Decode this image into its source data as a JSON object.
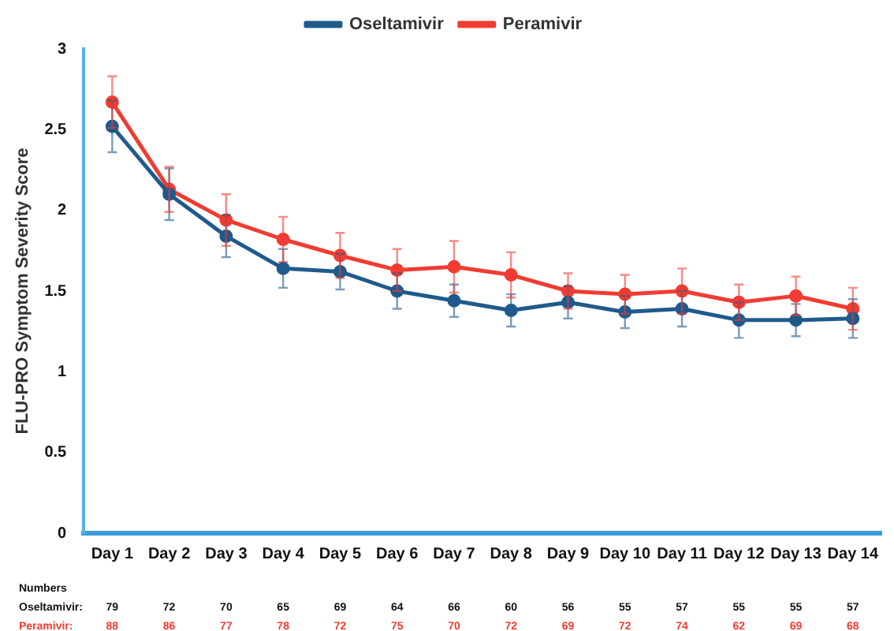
{
  "chart_data": {
    "type": "line",
    "ylabel": "FLU-PRO Symptom Severity Score",
    "categories": [
      "Day 1",
      "Day 2",
      "Day 3",
      "Day 4",
      "Day 5",
      "Day 6",
      "Day 7",
      "Day 8",
      "Day 9",
      "Day 10",
      "Day 11",
      "Day 12",
      "Day 13",
      "Day 14"
    ],
    "series": [
      {
        "name": "Oseltamivir",
        "color": "#1f5a8c",
        "values": [
          2.52,
          2.1,
          1.84,
          1.64,
          1.62,
          1.5,
          1.44,
          1.38,
          1.43,
          1.37,
          1.39,
          1.32,
          1.32,
          1.33
        ],
        "errors": [
          0.16,
          0.16,
          0.13,
          0.12,
          0.11,
          0.11,
          0.1,
          0.1,
          0.1,
          0.1,
          0.11,
          0.11,
          0.1,
          0.12
        ]
      },
      {
        "name": "Peramivir",
        "color": "#f03c32",
        "values": [
          2.67,
          2.13,
          1.94,
          1.82,
          1.72,
          1.63,
          1.65,
          1.6,
          1.5,
          1.48,
          1.5,
          1.43,
          1.47,
          1.39
        ],
        "errors": [
          0.16,
          0.14,
          0.16,
          0.14,
          0.14,
          0.13,
          0.16,
          0.14,
          0.11,
          0.12,
          0.14,
          0.11,
          0.12,
          0.13
        ]
      }
    ],
    "ylim": [
      0,
      3
    ],
    "yticks": [
      0,
      0.5,
      1,
      1.5,
      2,
      2.5,
      3
    ],
    "grid": false,
    "legend": "top",
    "marker": "circle",
    "line_style": "solid",
    "annotations": [
      "Numbers",
      "Oseltamivir: 79 72 70 65 69 64 66 60 56 55 57 55 55 57",
      "Peramivir: 88 86 77 78 72 75 70 72 69 72 74 62 69 68"
    ]
  }
}
